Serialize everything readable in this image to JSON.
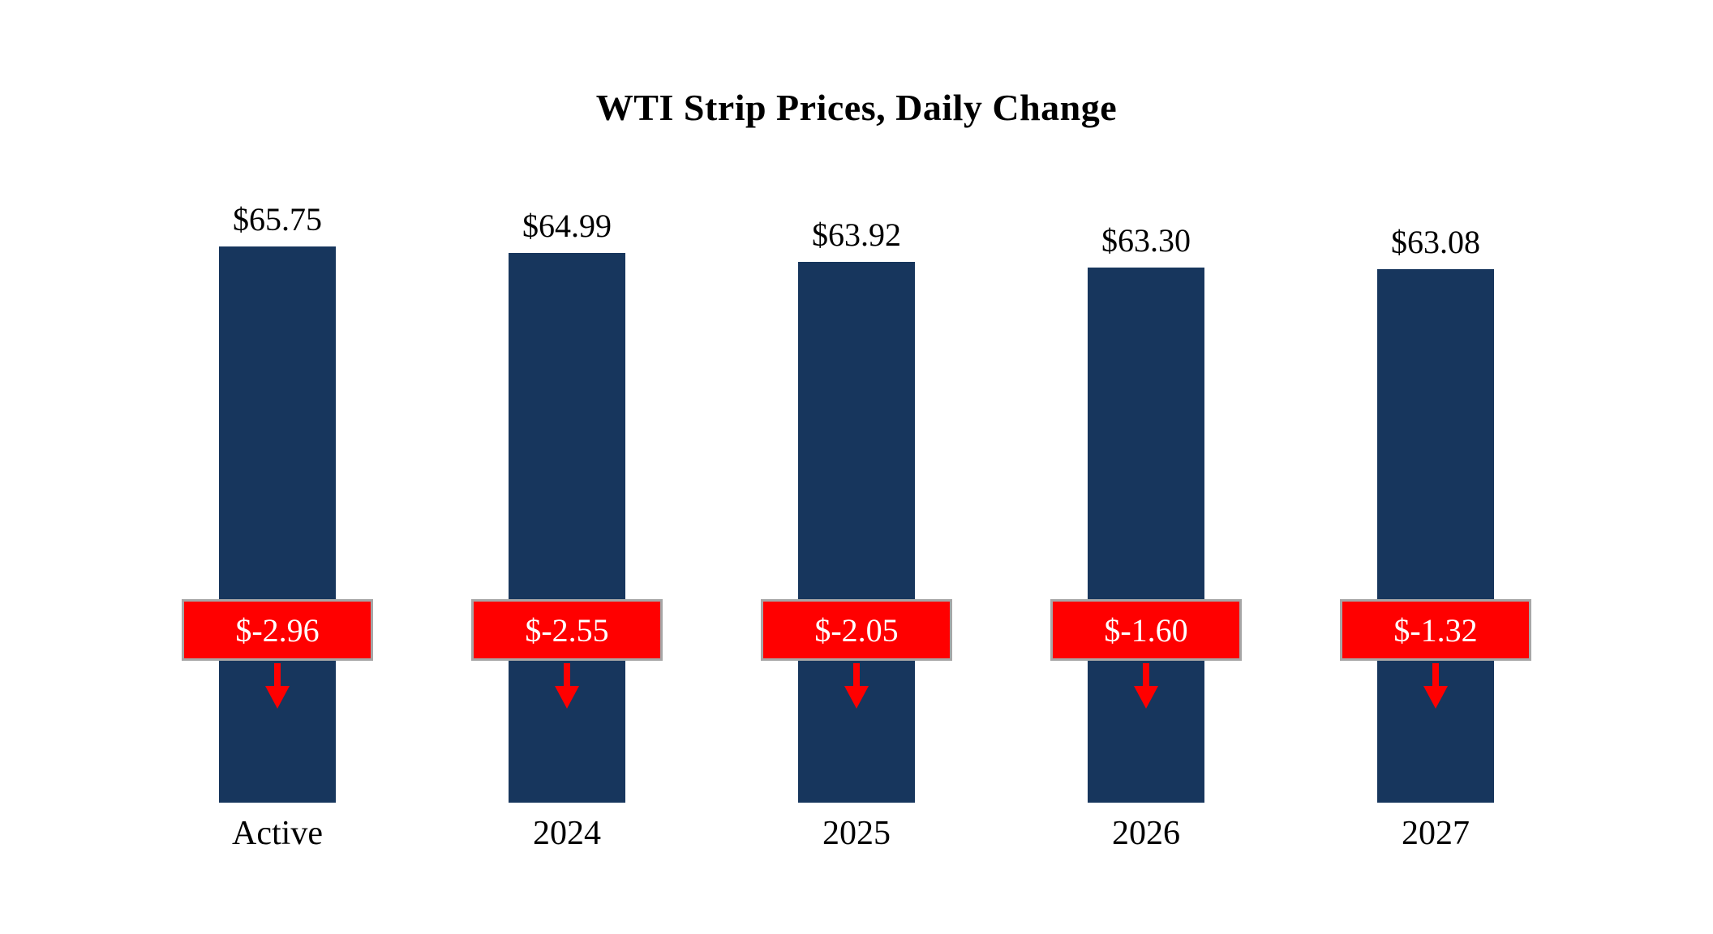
{
  "chart_data": {
    "type": "bar",
    "title": "WTI Strip Prices, Daily Change",
    "categories": [
      "Active",
      "2024",
      "2025",
      "2026",
      "2027"
    ],
    "series": [
      {
        "name": "Strip Price",
        "values": [
          65.75,
          64.99,
          63.92,
          63.3,
          63.08
        ]
      },
      {
        "name": "Daily Change",
        "values": [
          -2.96,
          -2.55,
          -2.05,
          -1.6,
          -1.32
        ]
      }
    ],
    "value_labels": [
      "$65.75",
      "$64.99",
      "$63.92",
      "$63.30",
      "$63.08"
    ],
    "change_labels": [
      "$-2.96",
      "$-2.55",
      "$-2.05",
      "$-1.60",
      "$-1.32"
    ],
    "xlabel": "",
    "ylabel": "",
    "ylim": [
      0,
      65.75
    ],
    "grid": false,
    "legend": "none",
    "colors": {
      "bar": "#17365D",
      "change_box": "#FF0000",
      "change_text": "#FFFFFF",
      "box_border": "#A6A6A6",
      "text": "#000000",
      "background": "#FFFFFF"
    }
  }
}
